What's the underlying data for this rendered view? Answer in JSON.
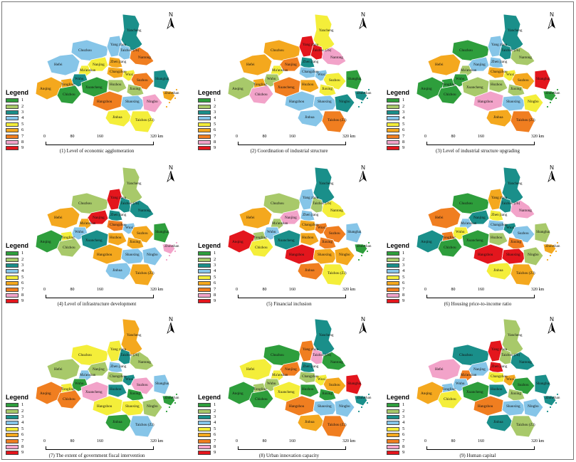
{
  "legend": {
    "title": "Legend",
    "items": [
      {
        "label": "1",
        "color": "#2e9e3c"
      },
      {
        "label": "2",
        "color": "#a8c96a"
      },
      {
        "label": "3",
        "color": "#1a8f8a"
      },
      {
        "label": "4",
        "color": "#86c5e8"
      },
      {
        "label": "5",
        "color": "#f4ee3a"
      },
      {
        "label": "6",
        "color": "#f4a81e"
      },
      {
        "label": "7",
        "color": "#f07e20"
      },
      {
        "label": "8",
        "color": "#f2a3c9"
      },
      {
        "label": "9",
        "color": "#e3161d"
      }
    ]
  },
  "north_label": "N",
  "scale": {
    "ticks": [
      "0",
      "80",
      "160",
      "320 km"
    ]
  },
  "panels": [
    {
      "caption": "(1) Level of economic agglomeration"
    },
    {
      "caption": "(2) Coordination of industrial structure"
    },
    {
      "caption": "(3) Level of industrial structure upgrading"
    },
    {
      "caption": "(4) Level of infrastructure development"
    },
    {
      "caption": "(5) Financial inclusion"
    },
    {
      "caption": "(6) Housing price-to-income ratio"
    },
    {
      "caption": "(7) The extent of government fiscal intervention"
    },
    {
      "caption": "(8) Urban innovation capacity"
    },
    {
      "caption": "(9) Human capital"
    }
  ],
  "city_names": [
    "Yancheng",
    "Chuzhou",
    "Yang zhou",
    "Taizhou (JS)",
    "Nantong",
    "Hefei",
    "Nanjing",
    "Zhen jiang",
    "Ma'anshan",
    "Changzhou",
    "Wuxi",
    "Suzhou",
    "Wuhu",
    "Tongling",
    "Shanghai",
    "Anqing",
    "Chizhou",
    "Xuancheng",
    "Huzhou",
    "Jiaxing",
    "Hangzhou",
    "Shaoxing",
    "Ningbo",
    "Zhoushan",
    "Jinhua",
    "Taizhou (ZJ)"
  ],
  "levels": [
    [
      3,
      4,
      4,
      4,
      7,
      4,
      5,
      6,
      5,
      6,
      5,
      7,
      3,
      6,
      3,
      6,
      1,
      1,
      2,
      2,
      7,
      4,
      8,
      6,
      5,
      5
    ],
    [
      5,
      6,
      9,
      9,
      8,
      6,
      7,
      3,
      5,
      4,
      4,
      5,
      2,
      6,
      1,
      2,
      8,
      7,
      6,
      5,
      4,
      4,
      3,
      3,
      4,
      7
    ],
    [
      3,
      1,
      4,
      3,
      2,
      6,
      4,
      4,
      2,
      6,
      5,
      6,
      1,
      1,
      9,
      1,
      1,
      2,
      2,
      2,
      8,
      4,
      5,
      1,
      6,
      7
    ],
    [
      2,
      2,
      9,
      3,
      3,
      6,
      9,
      3,
      6,
      7,
      4,
      6,
      4,
      5,
      1,
      1,
      2,
      3,
      6,
      6,
      6,
      4,
      4,
      8,
      4,
      6
    ],
    [
      3,
      2,
      4,
      2,
      5,
      6,
      8,
      4,
      2,
      6,
      7,
      7,
      4,
      2,
      4,
      9,
      5,
      3,
      6,
      7,
      9,
      6,
      6,
      1,
      7,
      5
    ],
    [
      3,
      1,
      6,
      3,
      8,
      7,
      3,
      5,
      4,
      4,
      3,
      4,
      5,
      7,
      2,
      3,
      1,
      1,
      2,
      7,
      9,
      9,
      2,
      6,
      5,
      6
    ],
    [
      6,
      5,
      5,
      3,
      2,
      2,
      2,
      4,
      4,
      2,
      3,
      8,
      1,
      5,
      4,
      7,
      7,
      8,
      3,
      1,
      5,
      5,
      2,
      1,
      1,
      4
    ],
    [
      3,
      1,
      7,
      8,
      1,
      5,
      7,
      3,
      5,
      2,
      5,
      6,
      2,
      2,
      9,
      1,
      1,
      5,
      1,
      1,
      7,
      4,
      4,
      3,
      6,
      7
    ],
    [
      2,
      3,
      9,
      2,
      3,
      8,
      4,
      9,
      7,
      5,
      6,
      1,
      4,
      4,
      3,
      6,
      5,
      1,
      3,
      2,
      7,
      4,
      4,
      3,
      3,
      2
    ]
  ]
}
